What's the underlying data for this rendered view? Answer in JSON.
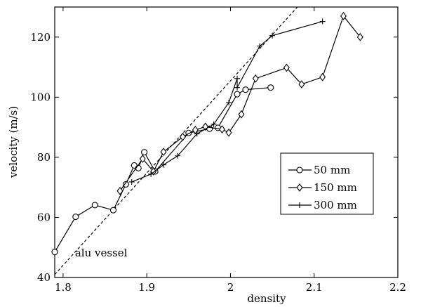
{
  "chart_data": {
    "type": "line",
    "xlabel": "density",
    "ylabel": "velocity (m/s)",
    "xlim": [
      1.79,
      2.2
    ],
    "ylim": [
      40,
      130
    ],
    "x_ticks": [
      1.8,
      1.9,
      2.0,
      2.1,
      2.2
    ],
    "x_tick_labels": [
      "1.8",
      "1.9",
      "2",
      "2.1",
      "2.2"
    ],
    "y_ticks": [
      40,
      60,
      80,
      100,
      120
    ],
    "y_tick_labels": [
      "40",
      "60",
      "80",
      "100",
      "120"
    ],
    "grid": false,
    "legend": {
      "placement": "right"
    },
    "series": [
      {
        "name": "50 mm",
        "marker": "circle",
        "x": [
          1.79,
          1.815,
          1.838,
          1.86,
          1.875,
          1.885,
          1.89,
          1.897,
          1.91,
          1.95,
          1.975,
          1.985,
          2.008,
          2.018,
          2.048
        ],
        "y": [
          48.5,
          60.2,
          64.1,
          62.4,
          71,
          77.3,
          76.4,
          81.7,
          75.3,
          88.1,
          89.5,
          89.8,
          101,
          102.5,
          103.2
        ]
      },
      {
        "name": "150 mm",
        "marker": "diamond",
        "x": [
          1.868,
          1.895,
          1.908,
          1.92,
          1.943,
          1.958,
          1.97,
          1.99,
          1.998,
          2.013,
          2.03,
          2.067,
          2.085,
          2.11,
          2.135,
          2.155
        ],
        "y": [
          68.8,
          79.5,
          75.3,
          81.8,
          86.8,
          89.1,
          90.2,
          89.3,
          88.2,
          94.3,
          106.2,
          109.8,
          104.3,
          106.7,
          127,
          120
        ]
      },
      {
        "name": "300 mm",
        "marker": "plus",
        "x": [
          1.882,
          1.905,
          1.92,
          1.937,
          1.96,
          1.98,
          1.998,
          2.008,
          2.008,
          2.035,
          2.05,
          2.11
        ],
        "y": [
          71.8,
          74.4,
          77.5,
          80.5,
          87.8,
          91,
          98.2,
          106.2,
          103.2,
          117,
          120.5,
          125.2
        ]
      }
    ],
    "reference_line": {
      "style": "dashed",
      "x": [
        1.79,
        2.08
      ],
      "y": [
        41,
        130
      ]
    },
    "annotations": [
      {
        "text": "alu vessel",
        "x": 1.81,
        "y": 47
      }
    ]
  }
}
